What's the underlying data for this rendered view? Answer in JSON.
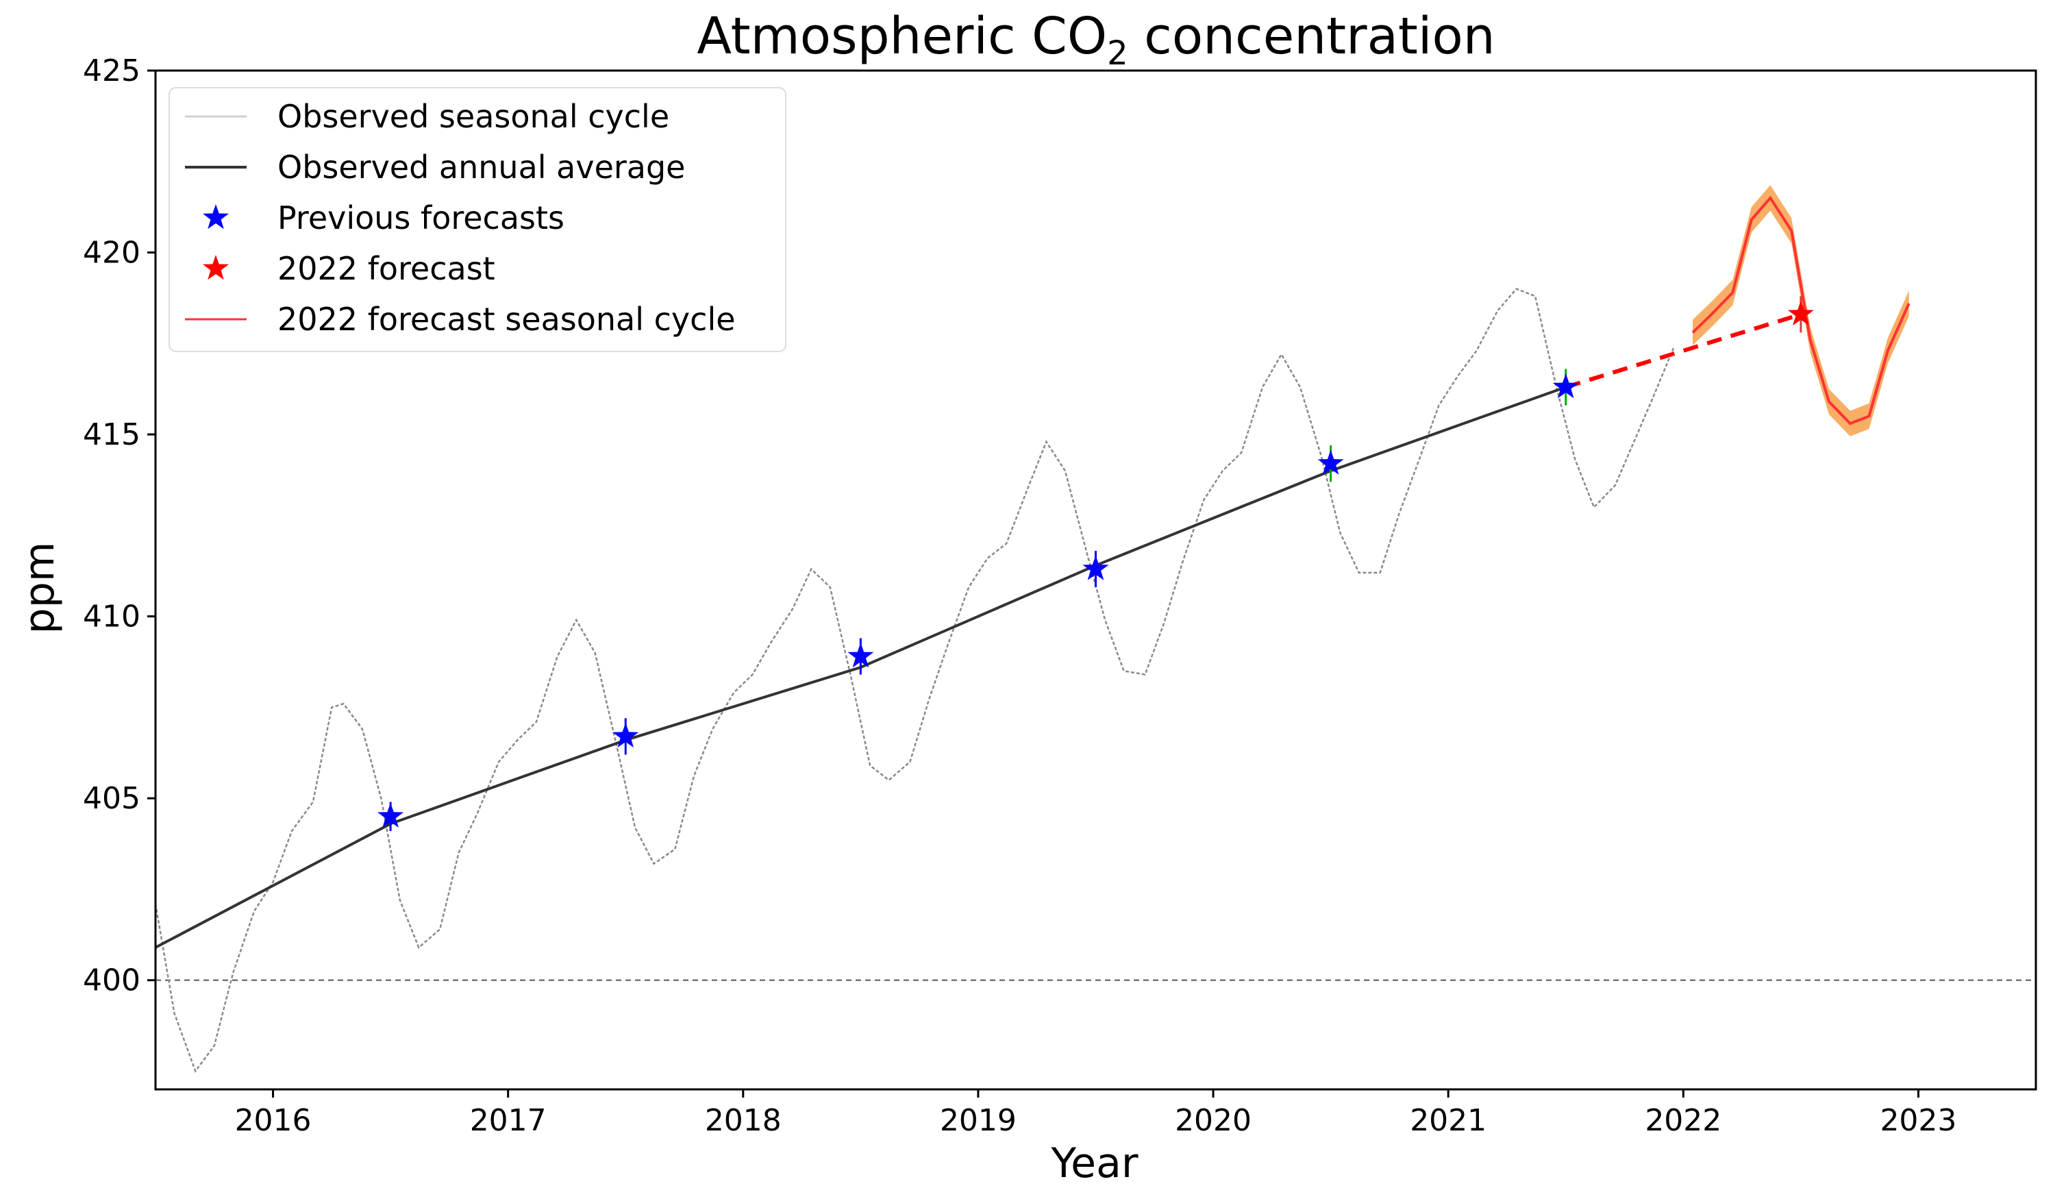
{
  "chart_data": {
    "type": "line",
    "title": {
      "main": "Atmospheric CO",
      "subscript": "2",
      "suffix": " concentration"
    },
    "xlabel": "Year",
    "ylabel": "ppm",
    "xlim": [
      2015.5,
      2023.5
    ],
    "ylim": [
      397,
      425
    ],
    "xticks": [
      2016,
      2017,
      2018,
      2019,
      2020,
      2021,
      2022,
      2023
    ],
    "yticks": [
      400,
      405,
      410,
      415,
      420,
      425
    ],
    "reference_line": {
      "y": 400,
      "style": "dashed"
    },
    "legend": {
      "position": "upper-left",
      "entries": [
        {
          "label": "Observed seasonal cycle",
          "color": "#cfcfcf",
          "kind": "line"
        },
        {
          "label": "Observed annual average",
          "color": "#333333",
          "kind": "line"
        },
        {
          "label": "Previous forecasts",
          "color": "#0000ff",
          "kind": "star"
        },
        {
          "label": "2022 forecast",
          "color": "#ff0000",
          "kind": "star"
        },
        {
          "label": "2022 forecast seasonal cycle",
          "color": "#ff3333",
          "kind": "line"
        }
      ]
    },
    "series": [
      {
        "name": "Observed seasonal cycle",
        "color": "#8a8a8a",
        "style": "thin-dashed",
        "x": [
          2015.5,
          2015.58,
          2015.67,
          2015.75,
          2015.83,
          2015.92,
          2016.0,
          2016.08,
          2016.17,
          2016.25,
          2016.3,
          2016.38,
          2016.46,
          2016.54,
          2016.62,
          2016.71,
          2016.79,
          2016.87,
          2016.96,
          2017.04,
          2017.12,
          2017.21,
          2017.29,
          2017.37,
          2017.46,
          2017.54,
          2017.62,
          2017.71,
          2017.79,
          2017.87,
          2017.96,
          2018.04,
          2018.12,
          2018.21,
          2018.29,
          2018.37,
          2018.46,
          2018.54,
          2018.62,
          2018.71,
          2018.79,
          2018.87,
          2018.96,
          2019.04,
          2019.12,
          2019.21,
          2019.29,
          2019.37,
          2019.46,
          2019.54,
          2019.62,
          2019.71,
          2019.79,
          2019.87,
          2019.96,
          2020.04,
          2020.12,
          2020.21,
          2020.29,
          2020.37,
          2020.46,
          2020.54,
          2020.62,
          2020.71,
          2020.79,
          2020.87,
          2020.96,
          2021.04,
          2021.12,
          2021.21,
          2021.29,
          2021.37,
          2021.46,
          2021.54,
          2021.62,
          2021.71,
          2021.79,
          2021.87,
          2021.96
        ],
        "values": [
          402.1,
          399.1,
          397.5,
          398.2,
          400.2,
          401.9,
          402.7,
          404.1,
          404.9,
          407.5,
          407.6,
          406.9,
          405.0,
          402.2,
          400.9,
          401.4,
          403.5,
          404.6,
          406.0,
          406.6,
          407.1,
          408.9,
          409.9,
          409.0,
          406.5,
          404.2,
          403.2,
          403.6,
          405.6,
          406.9,
          407.9,
          408.4,
          409.3,
          410.2,
          411.3,
          410.8,
          408.3,
          405.9,
          405.5,
          406.0,
          407.7,
          409.2,
          410.8,
          411.6,
          412.0,
          413.5,
          414.8,
          414.0,
          411.8,
          409.9,
          408.5,
          408.4,
          409.8,
          411.5,
          413.2,
          414.0,
          414.5,
          416.3,
          417.2,
          416.3,
          414.4,
          412.3,
          411.2,
          411.2,
          412.8,
          414.2,
          415.8,
          416.6,
          417.3,
          418.4,
          419.0,
          418.8,
          416.3,
          414.3,
          413.0,
          413.6,
          414.8,
          416.0,
          417.4
        ]
      },
      {
        "name": "Observed annual average",
        "color": "#333333",
        "x": [
          2015.5,
          2016.5,
          2017.5,
          2018.5,
          2019.5,
          2020.5,
          2021.5
        ],
        "values": [
          400.9,
          404.3,
          406.6,
          408.6,
          411.4,
          414.0,
          416.3
        ]
      },
      {
        "name": "Previous forecasts",
        "color": "#0000ff",
        "marker": "star",
        "x": [
          2016.5,
          2017.5,
          2018.5,
          2019.5,
          2020.5,
          2021.5
        ],
        "values": [
          404.5,
          406.7,
          408.9,
          411.3,
          414.2,
          416.3
        ],
        "error": [
          0.4,
          0.5,
          0.5,
          0.5,
          0.5,
          0.5
        ],
        "error_colors": [
          "#0000ff",
          "#0000ff",
          "#0000ff",
          "#0000ff",
          "#00aa00",
          "#00aa00"
        ]
      },
      {
        "name": "2022 forecast",
        "color": "#ff0000",
        "marker": "star",
        "x": [
          2022.5
        ],
        "values": [
          418.3
        ],
        "error": [
          0.5
        ]
      },
      {
        "name": "Forecast trend",
        "color": "#ff0000",
        "style": "dashed",
        "x": [
          2021.5,
          2022.5
        ],
        "values": [
          416.3,
          418.3
        ]
      },
      {
        "name": "2022 forecast seasonal cycle",
        "color": "#ff3333",
        "band_color": "#f7a04a",
        "band_halfwidth": 0.35,
        "x": [
          2022.04,
          2022.12,
          2022.21,
          2022.29,
          2022.37,
          2022.46,
          2022.54,
          2022.62,
          2022.71,
          2022.79,
          2022.87,
          2022.96
        ],
        "values": [
          417.8,
          418.3,
          418.9,
          420.9,
          421.5,
          420.6,
          417.6,
          415.9,
          415.3,
          415.5,
          417.3,
          418.6
        ]
      }
    ]
  }
}
